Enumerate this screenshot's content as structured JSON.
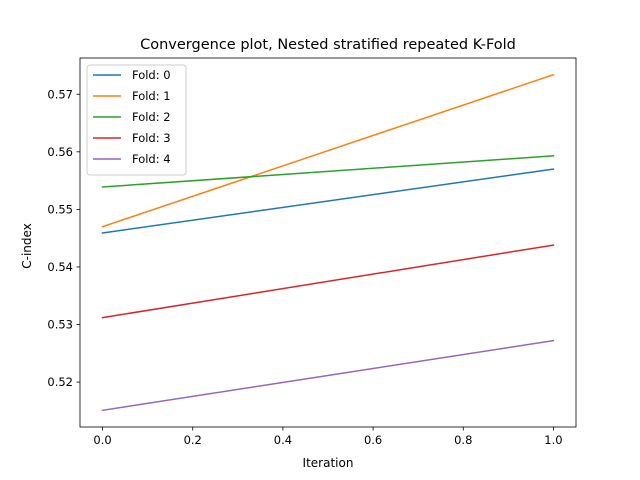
{
  "chart_data": {
    "type": "line",
    "title": "Convergence plot, Nested stratified repeated K-Fold",
    "xlabel": "Iteration",
    "ylabel": "C-index",
    "xlim": [
      -0.05,
      1.05
    ],
    "ylim": [
      0.5122,
      0.5763
    ],
    "x_ticks": [
      0.0,
      0.2,
      0.4,
      0.6,
      0.8,
      1.0
    ],
    "x_tick_labels": [
      "0.0",
      "0.2",
      "0.4",
      "0.6",
      "0.8",
      "1.0"
    ],
    "y_ticks": [
      0.52,
      0.53,
      0.54,
      0.55,
      0.56,
      0.57
    ],
    "y_tick_labels": [
      "0.52",
      "0.53",
      "0.54",
      "0.55",
      "0.56",
      "0.57"
    ],
    "grid": false,
    "legend_position": "upper-left",
    "series": [
      {
        "name": "Fold: 0",
        "color": "#1f77b4",
        "x": [
          0,
          1
        ],
        "y": [
          0.5459,
          0.557
        ]
      },
      {
        "name": "Fold: 1",
        "color": "#ff7f0e",
        "x": [
          0,
          1
        ],
        "y": [
          0.547,
          0.5734
        ]
      },
      {
        "name": "Fold: 2",
        "color": "#2ca02c",
        "x": [
          0,
          1
        ],
        "y": [
          0.5539,
          0.5593
        ]
      },
      {
        "name": "Fold: 3",
        "color": "#d62728",
        "x": [
          0,
          1
        ],
        "y": [
          0.5312,
          0.5438
        ]
      },
      {
        "name": "Fold: 4",
        "color": "#9467bd",
        "x": [
          0,
          1
        ],
        "y": [
          0.5151,
          0.5272
        ]
      }
    ]
  }
}
